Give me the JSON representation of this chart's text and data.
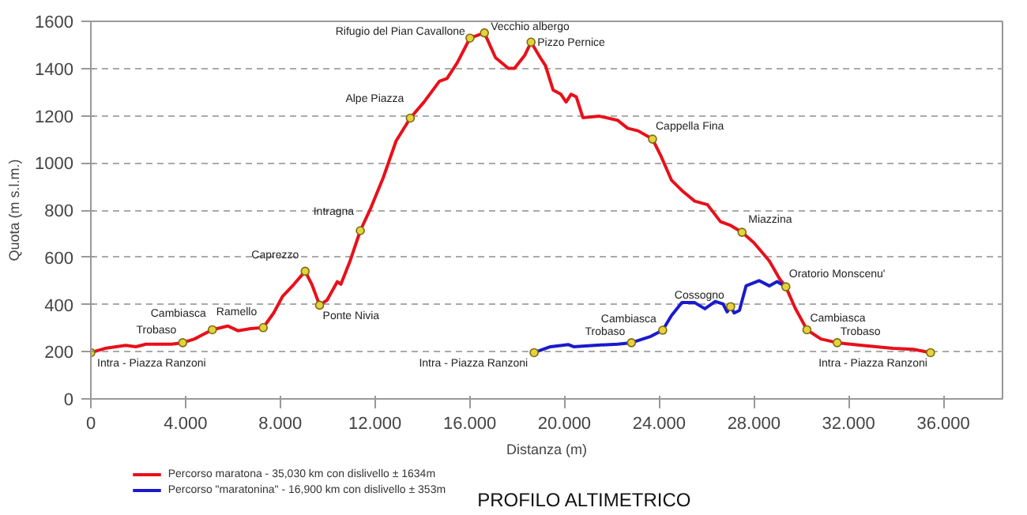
{
  "chart_data": {
    "type": "line",
    "title": "PROFILO ALTIMETRICO",
    "xlabel": "Distanza (m)",
    "ylabel": "Quota (m s.l.m.)",
    "xlim": [
      0,
      38500
    ],
    "ylim": [
      0,
      1600
    ],
    "xticks": [
      0,
      {
        "value": 4000,
        "label": "4.000"
      },
      {
        "value": 8000,
        "label": "8.000"
      },
      {
        "value": 12000,
        "label": "12.000"
      },
      {
        "value": 16000,
        "label": "16.000"
      },
      {
        "value": 20000,
        "label": "20.000"
      },
      {
        "value": 24000,
        "label": "24.000"
      },
      {
        "value": 28000,
        "label": "28.000"
      },
      {
        "value": 32000,
        "label": "32.000"
      },
      {
        "value": 36000,
        "label": "36.000"
      }
    ],
    "yticks": [
      0,
      200,
      400,
      600,
      800,
      1000,
      1200,
      1400,
      1600
    ],
    "grid": "y",
    "legend": "bottom left",
    "line_style": "solid",
    "series": [
      {
        "name": "Percorso maratona - 35,030 km  con dislivello ± 1634m",
        "color": "#e8101a",
        "x": [
          0,
          600,
          1470,
          1900,
          2330,
          3400,
          3880,
          4380,
          5130,
          5780,
          6210,
          6750,
          7280,
          7720,
          8100,
          8580,
          9050,
          9330,
          9660,
          9980,
          10410,
          10560,
          10950,
          11380,
          11810,
          12350,
          12890,
          13490,
          14070,
          14720,
          15040,
          15470,
          16010,
          16620,
          17090,
          17630,
          17890,
          18330,
          18590,
          18980,
          19200,
          19520,
          19850,
          20070,
          20280,
          20500,
          20780,
          21480,
          22240,
          22670,
          23110,
          23720,
          24090,
          24520,
          24960,
          25500,
          26040,
          26590,
          27020,
          27500,
          28000,
          28650,
          29090,
          29350,
          29740,
          30240,
          30830,
          31520,
          32570,
          33870,
          34740,
          35460
        ],
        "values": [
          196,
          214,
          227,
          221,
          232,
          232,
          238,
          254,
          293,
          309,
          289,
          298,
          302,
          364,
          435,
          486,
          541,
          486,
          397,
          419,
          497,
          486,
          585,
          713,
          806,
          938,
          1093,
          1190,
          1258,
          1346,
          1358,
          1424,
          1529,
          1551,
          1446,
          1401,
          1401,
          1457,
          1512,
          1446,
          1412,
          1309,
          1291,
          1258,
          1291,
          1280,
          1192,
          1198,
          1181,
          1147,
          1136,
          1101,
          1026,
          927,
          883,
          838,
          823,
          751,
          735,
          706,
          662,
          585,
          508,
          475,
          386,
          293,
          254,
          238,
          227,
          214,
          210,
          196
        ]
      },
      {
        "name": "Percorso \"maratonina\" - 16,900 km  con dislivello ± 353m",
        "color": "#1a1acc",
        "x": [
          18720,
          19410,
          20170,
          20390,
          21260,
          22240,
          22830,
          23650,
          24150,
          24520,
          24960,
          25500,
          25930,
          26370,
          26700,
          26870,
          27020,
          27170,
          27390,
          27670,
          28220,
          28650,
          28980,
          29350
        ],
        "values": [
          196,
          221,
          230,
          221,
          227,
          232,
          238,
          265,
          291,
          353,
          408,
          408,
          382,
          413,
          402,
          369,
          391,
          364,
          375,
          479,
          501,
          479,
          497,
          475
        ]
      },
      {
        "type": "scatter",
        "color": "#e6d23c",
        "x": [
          0,
          3880,
          5130,
          7280,
          9050,
          9660,
          11380,
          13490,
          16010,
          16620,
          18590,
          23720,
          27500,
          29350,
          30240,
          31520,
          35460,
          18720,
          22830,
          24150,
          27020
        ],
        "values": [
          196,
          238,
          293,
          302,
          541,
          397,
          713,
          1190,
          1529,
          1551,
          1512,
          1101,
          706,
          475,
          293,
          238,
          196,
          196,
          238,
          291,
          391
        ]
      }
    ],
    "annotations": [
      {
        "text": "Intra - Piazza Ranzoni",
        "x": 0,
        "y": 196
      },
      {
        "text": "Trobaso",
        "x": 3880,
        "y": 238
      },
      {
        "text": "Cambiasca",
        "x": 5130,
        "y": 293
      },
      {
        "text": "Ramello",
        "x": 7280,
        "y": 302
      },
      {
        "text": "Caprezzo",
        "x": 9050,
        "y": 541
      },
      {
        "text": "Ponte Nivia",
        "x": 9660,
        "y": 397
      },
      {
        "text": "Intragna",
        "x": 11380,
        "y": 713
      },
      {
        "text": "Alpe Piazza",
        "x": 13490,
        "y": 1190
      },
      {
        "text": "Rifugio del Pian Cavallone",
        "x": 16010,
        "y": 1529
      },
      {
        "text": "Vecchio albergo",
        "x": 16620,
        "y": 1551
      },
      {
        "text": "Pizzo Pernice",
        "x": 18590,
        "y": 1512
      },
      {
        "text": "Cappella Fina",
        "x": 23720,
        "y": 1101
      },
      {
        "text": "Miazzina",
        "x": 27500,
        "y": 706
      },
      {
        "text": "Oratorio Monscenu'",
        "x": 29350,
        "y": 475
      },
      {
        "text": "Cambiasca",
        "x": 30240,
        "y": 293
      },
      {
        "text": "Trobaso",
        "x": 31520,
        "y": 238
      },
      {
        "text": "Intra - Piazza Ranzoni",
        "x": 35460,
        "y": 196
      },
      {
        "text": "Intra - Piazza Ranzoni",
        "x": 18720,
        "y": 196
      },
      {
        "text": "Trobaso",
        "x": 22830,
        "y": 238
      },
      {
        "text": "Cambiasca",
        "x": 24150,
        "y": 291
      },
      {
        "text": "Cossogno",
        "x": 27020,
        "y": 391
      }
    ]
  }
}
